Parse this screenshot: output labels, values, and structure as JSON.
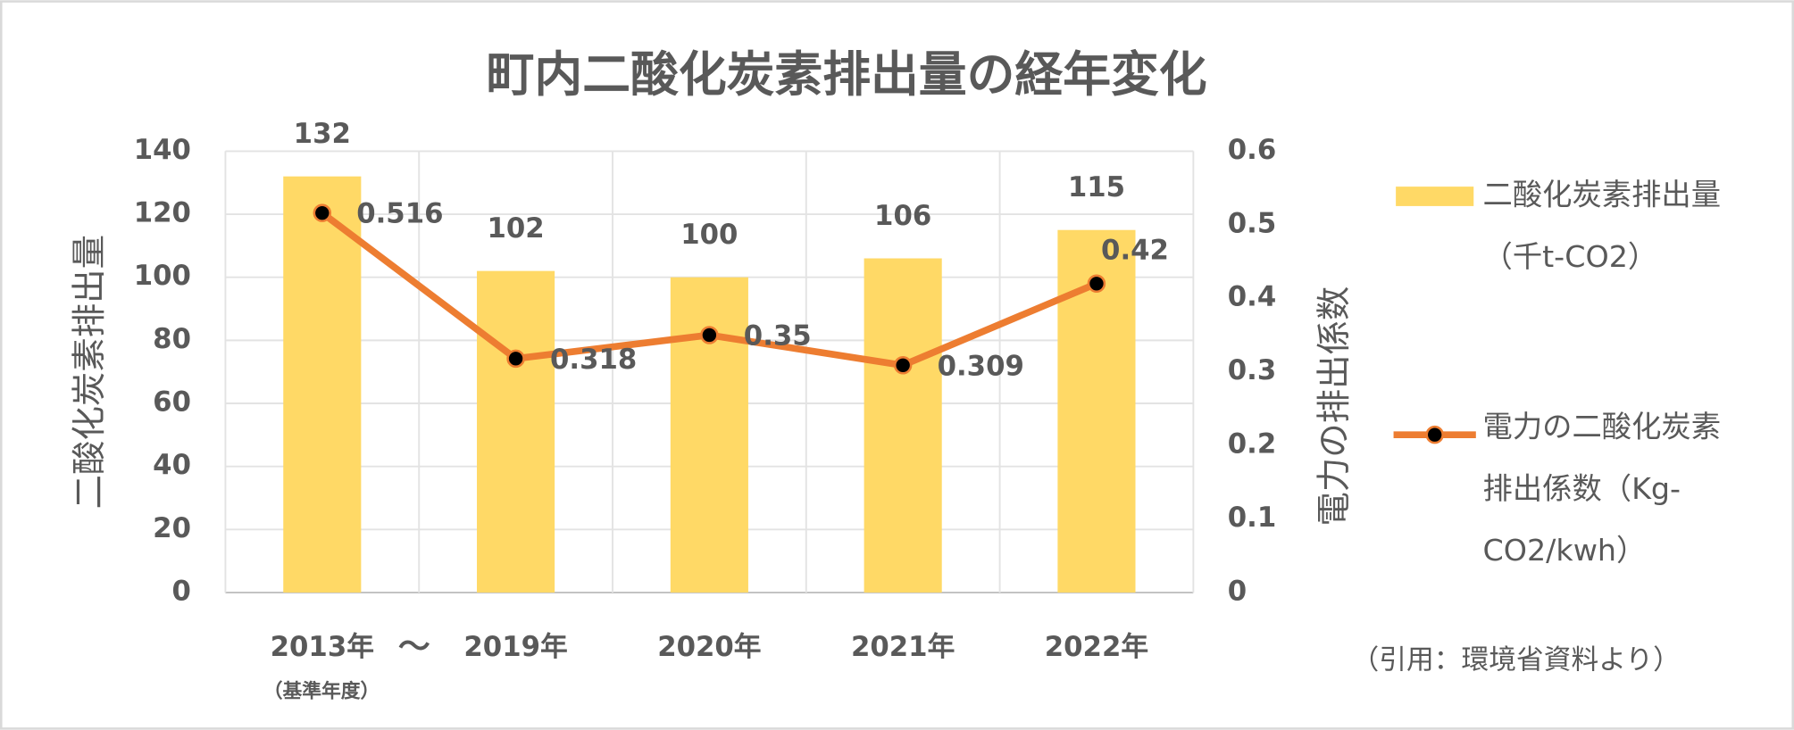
{
  "chart_data": {
    "type": "bar-line",
    "title": "町内二酸化炭素排出量の経年変化",
    "categories": [
      "2013年",
      "2019年",
      "2020年",
      "2021年",
      "2022年"
    ],
    "category_annotations": {
      "separator": "～",
      "base_year": "（基準年度）"
    },
    "ylabel": "二酸化炭素排出量",
    "y2label": "電力の排出係数",
    "ylim": [
      0,
      140
    ],
    "yticks": [
      0,
      20,
      40,
      60,
      80,
      100,
      120,
      140
    ],
    "y2lim": [
      0,
      0.6
    ],
    "y2ticks": [
      0,
      0.1,
      0.2,
      0.3,
      0.4,
      0.5,
      0.6
    ],
    "grid": true,
    "series": [
      {
        "name": "二酸化炭素排出量（千t-CO2）",
        "kind": "bar",
        "color": "#ffd966",
        "values": [
          132,
          102,
          100,
          106,
          115
        ]
      },
      {
        "name": "電力の二酸化炭素排出係数（Kg-CO2/kwh）",
        "kind": "line",
        "axis": "y2",
        "color": "#ed7d31",
        "values": [
          0.516,
          0.318,
          0.35,
          0.309,
          0.42
        ]
      }
    ],
    "source": "（引用：環境省資料より）"
  }
}
